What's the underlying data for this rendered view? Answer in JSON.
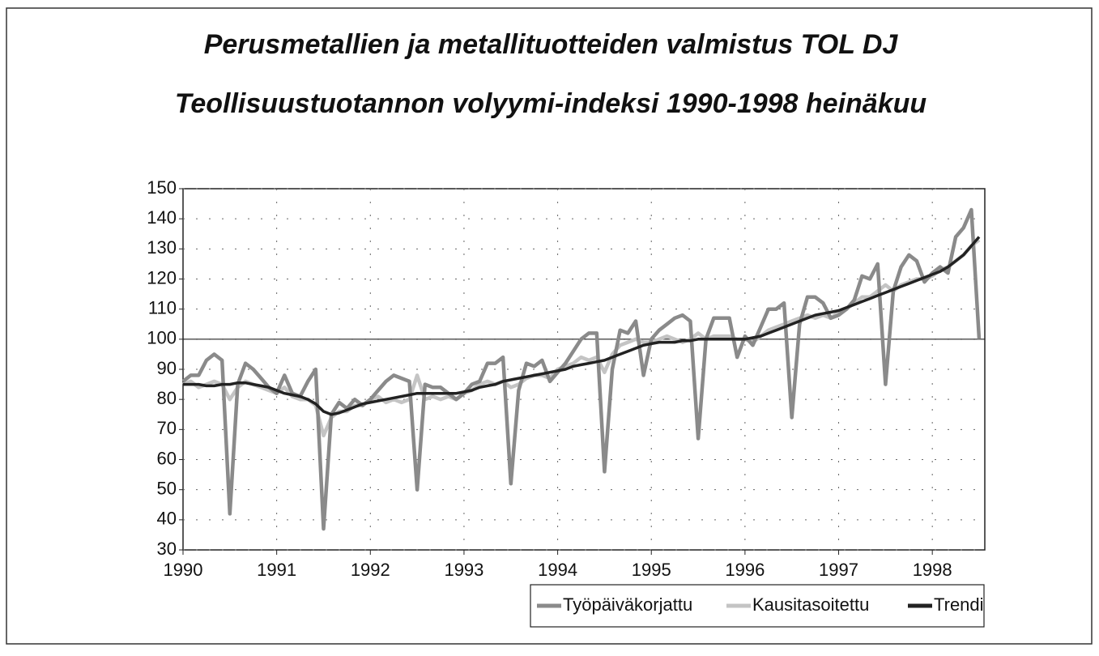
{
  "chart_data": {
    "type": "line",
    "title": "Perusmetallien ja metallituotteiden valmistus TOL DJ",
    "subtitle": "Teollisuustuotannon volyymi-indeksi 1990-1998 heinäkuu",
    "categories": [
      "1990",
      null,
      null,
      null,
      null,
      null,
      null,
      null,
      null,
      null,
      null,
      null,
      "1991",
      null,
      null,
      null,
      null,
      null,
      null,
      null,
      null,
      null,
      null,
      null,
      "1992",
      null,
      null,
      null,
      null,
      null,
      null,
      null,
      null,
      null,
      null,
      null,
      "1993",
      null,
      null,
      null,
      null,
      null,
      null,
      null,
      null,
      null,
      null,
      null,
      "1994",
      null,
      null,
      null,
      null,
      null,
      null,
      null,
      null,
      null,
      null,
      null,
      "1995",
      null,
      null,
      null,
      null,
      null,
      null,
      null,
      null,
      null,
      null,
      null,
      "1996",
      null,
      null,
      null,
      null,
      null,
      null,
      null,
      null,
      null,
      null,
      null,
      "1997",
      null,
      null,
      null,
      null,
      null,
      null,
      null,
      null,
      null,
      null,
      null,
      "1998",
      null,
      null,
      null,
      null,
      null,
      null
    ],
    "series": [
      {
        "name": "Työpäiväkorjattu",
        "color": "#8a8a8a",
        "values": [
          86,
          88,
          88,
          93,
          95,
          93,
          42,
          85,
          92,
          90,
          87,
          84,
          82,
          88,
          82,
          81,
          86,
          90,
          37,
          75,
          79,
          77,
          80,
          78,
          80,
          83,
          86,
          88,
          87,
          86,
          50,
          85,
          84,
          84,
          82,
          80,
          82,
          85,
          86,
          92,
          92,
          94,
          52,
          83,
          92,
          91,
          93,
          86,
          89,
          92,
          96,
          100,
          102,
          102,
          56,
          90,
          103,
          102,
          106,
          88,
          100,
          103,
          105,
          107,
          108,
          106,
          67,
          100,
          107,
          107,
          107,
          94,
          101,
          98,
          104,
          110,
          110,
          112,
          74,
          105,
          114,
          114,
          112,
          107,
          108,
          110,
          113,
          121,
          120,
          125,
          85,
          116,
          124,
          128,
          126,
          119,
          122,
          124,
          122,
          134,
          137,
          143,
          100
        ]
      },
      {
        "name": "Kausitasoitettu",
        "color": "#c4c4c4",
        "values": [
          85,
          86,
          84,
          85,
          86,
          85,
          80,
          84,
          86,
          85,
          84,
          83,
          82,
          84,
          81,
          80,
          80,
          78,
          68,
          74,
          76,
          76,
          78,
          78,
          80,
          81,
          79,
          80,
          79,
          80,
          88,
          80,
          81,
          80,
          81,
          80,
          82,
          83,
          85,
          86,
          85,
          86,
          84,
          85,
          87,
          88,
          88,
          87,
          90,
          91,
          92,
          94,
          93,
          94,
          89,
          95,
          98,
          99,
          100,
          99,
          99,
          100,
          101,
          100,
          99,
          100,
          102,
          100,
          101,
          101,
          101,
          100,
          100,
          99,
          101,
          103,
          104,
          105,
          106,
          107,
          108,
          107,
          108,
          107,
          109,
          110,
          112,
          114,
          114,
          116,
          118,
          116,
          118,
          119,
          120,
          120,
          121,
          123,
          124,
          126,
          128,
          131,
          133
        ]
      },
      {
        "name": "Trendi",
        "color": "#222222",
        "values": [
          85,
          85,
          85,
          84.5,
          84.5,
          85,
          85,
          85.5,
          85.5,
          85,
          84.5,
          84,
          83,
          82,
          81.5,
          81,
          80,
          78.5,
          76,
          75,
          75.5,
          76.5,
          77.5,
          78.5,
          79,
          79.5,
          80,
          80.5,
          81,
          81.5,
          82,
          82,
          82,
          82,
          82,
          82,
          82.5,
          83,
          84,
          84.5,
          85,
          86,
          86.5,
          87,
          87.5,
          88,
          88.5,
          89,
          89.5,
          90,
          91,
          91.5,
          92,
          92.5,
          93,
          94,
          95,
          96,
          97,
          98,
          98.5,
          99,
          99,
          99,
          99.5,
          99.5,
          100,
          100,
          100,
          100,
          100,
          100,
          100,
          100.5,
          101,
          102,
          103,
          104,
          105,
          106,
          107,
          108,
          108.5,
          109,
          109.5,
          110.5,
          111.5,
          112.5,
          113.5,
          114.5,
          115.5,
          116.5,
          117.5,
          118.5,
          119.5,
          120.5,
          121.5,
          122.5,
          124,
          126,
          128,
          131,
          134
        ]
      }
    ],
    "ylim": [
      30,
      150
    ],
    "yticks": [
      30,
      40,
      50,
      60,
      70,
      80,
      90,
      100,
      110,
      120,
      130,
      140,
      150
    ],
    "grid": true,
    "x_axis_crosses": 100,
    "legend": "bottom-right"
  }
}
